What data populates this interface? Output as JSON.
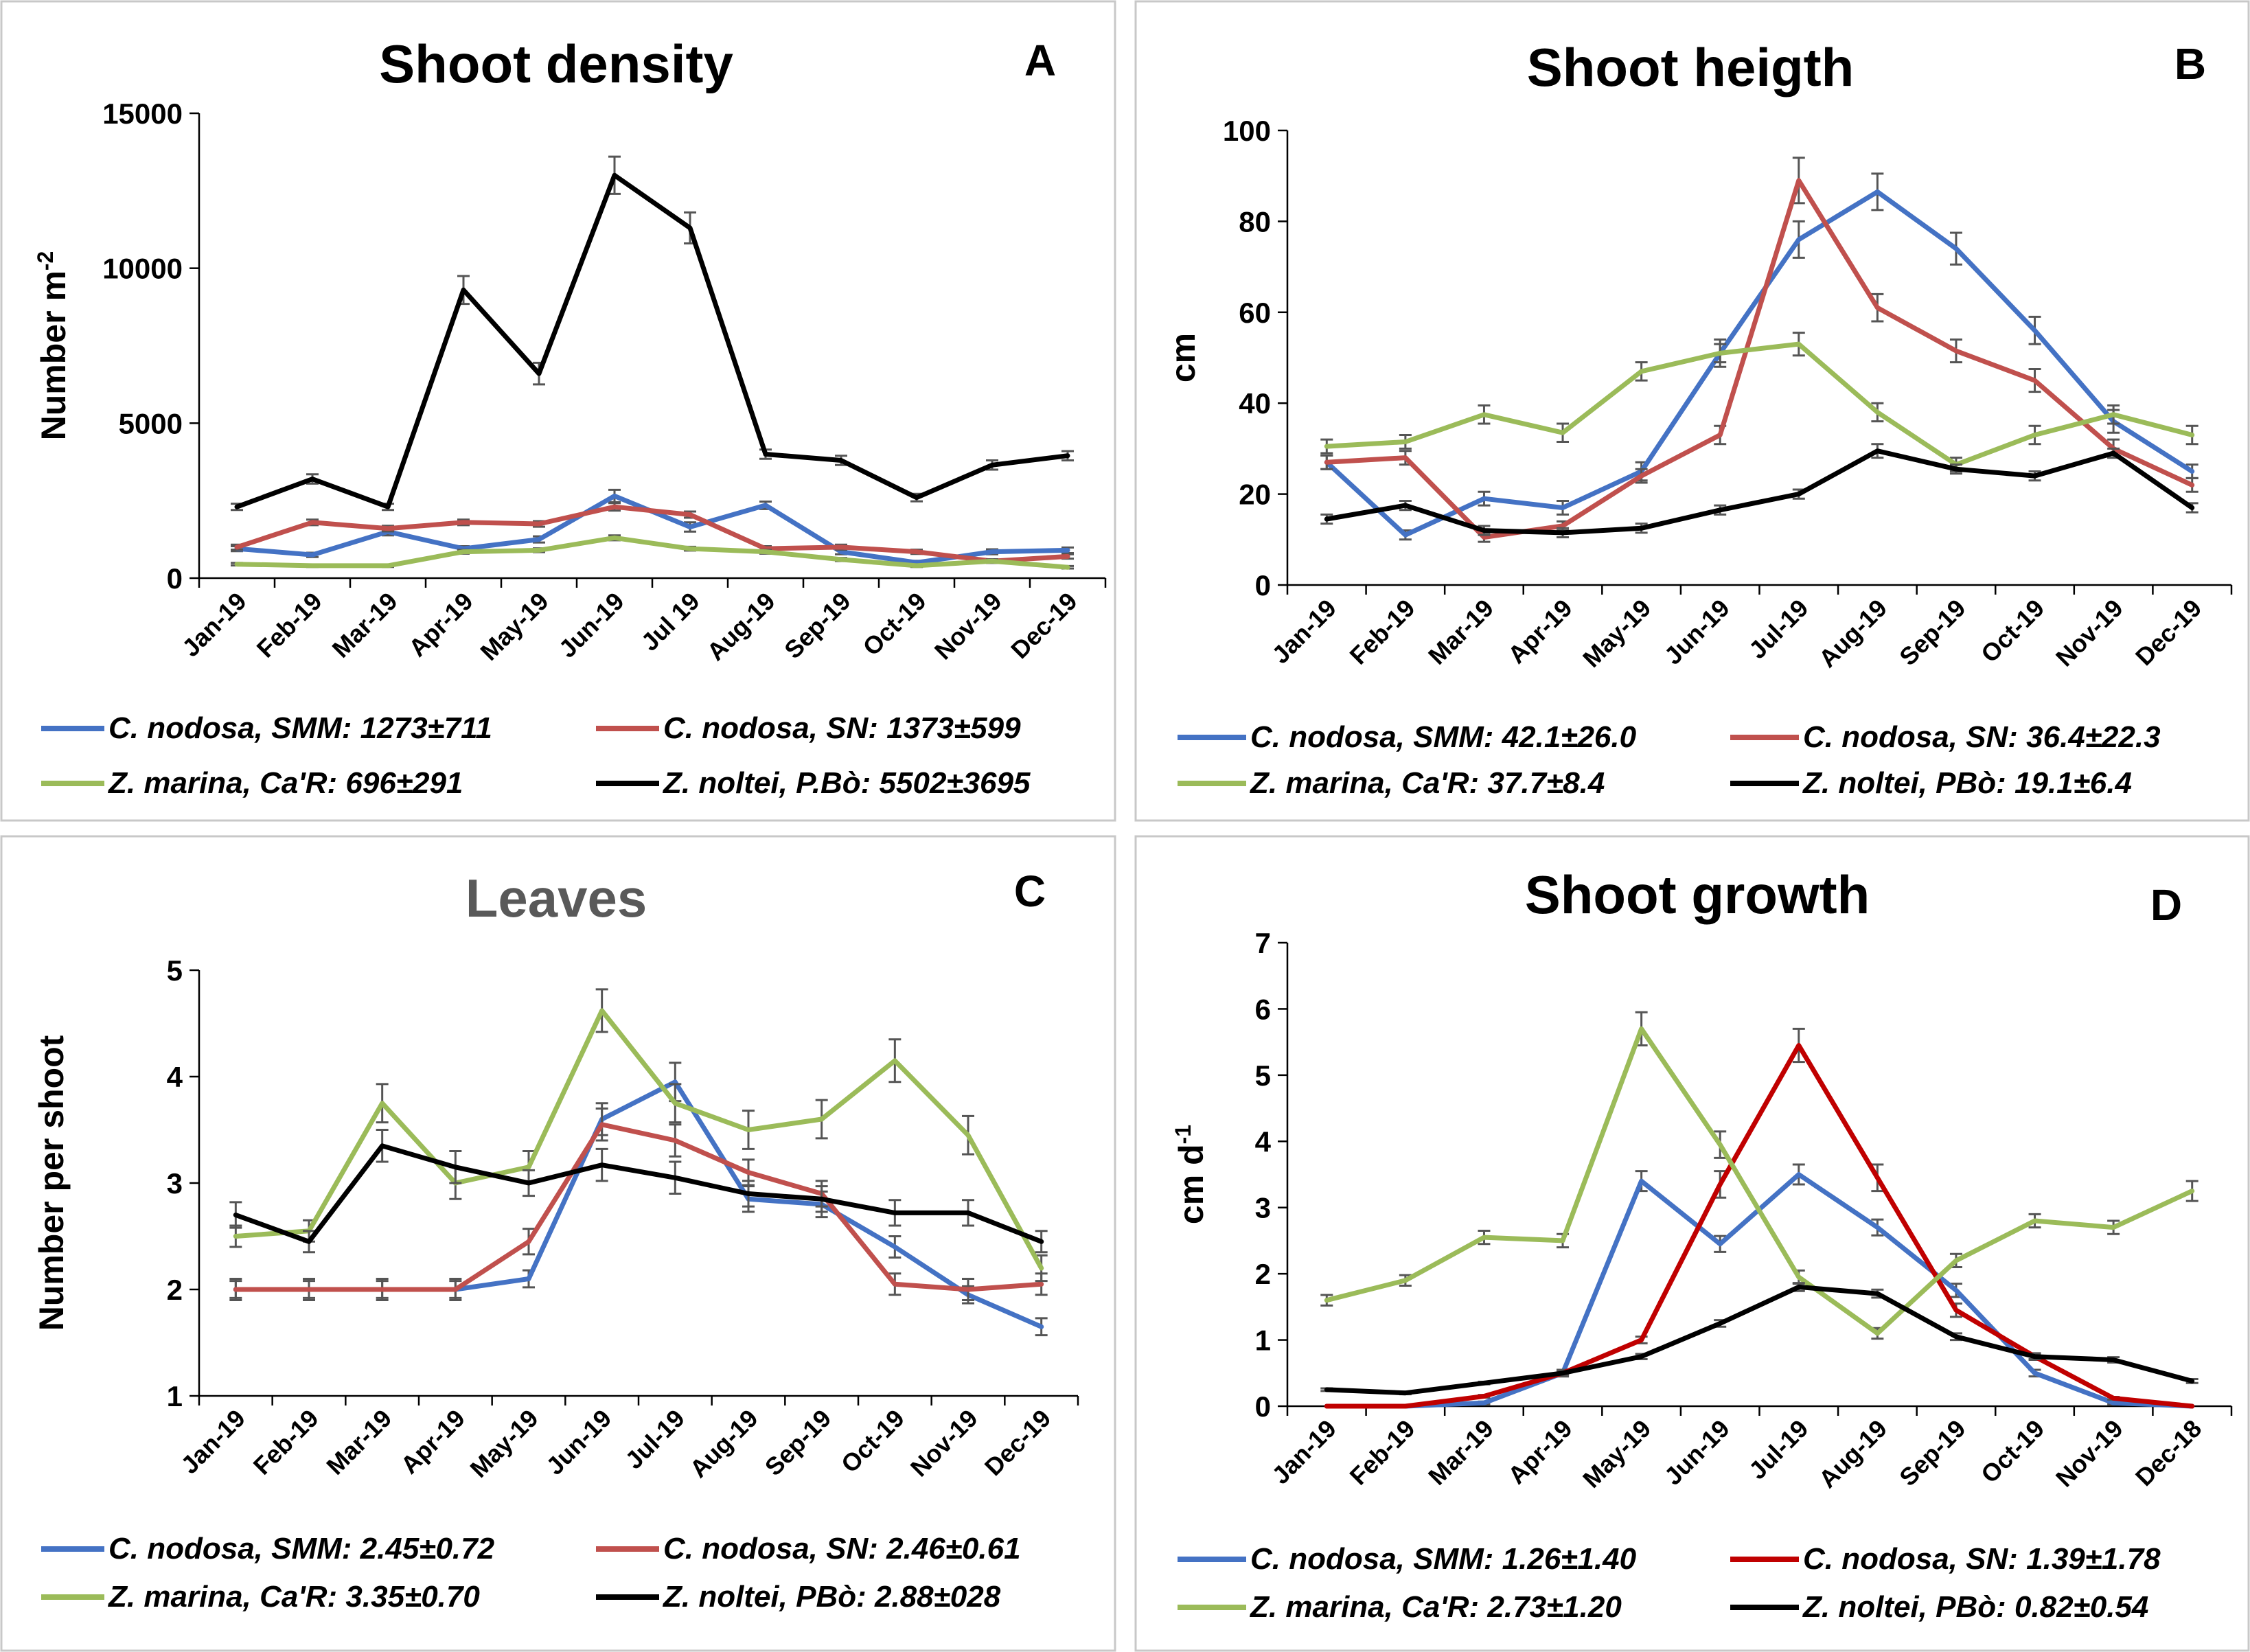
{
  "chart_data": [
    {
      "type": "line",
      "panel": "A",
      "title": "Shoot density",
      "ylabel": "Number m",
      "ylabel_sup": "-2",
      "ylim": [
        0,
        15000
      ],
      "yticks": [
        0,
        5000,
        10000,
        15000
      ],
      "categories": [
        "Jan-19",
        "Feb-19",
        "Mar-19",
        "Apr-19",
        "May-19",
        "Jun-19",
        "Jul 19",
        "Aug-19",
        "Sep-19",
        "Oct-19",
        "Nov-19",
        "Dec-19"
      ],
      "series": [
        {
          "name": "C. nodosa, SMM: 1273±711",
          "color": "#4472C4",
          "values": [
            950,
            750,
            1500,
            950,
            1250,
            2650,
            1650,
            2350,
            850,
            500,
            850,
            900
          ],
          "errors": [
            80,
            70,
            120,
            80,
            100,
            200,
            150,
            120,
            80,
            60,
            80,
            90
          ]
        },
        {
          "name": "C. nodosa, SN: 1373±599",
          "color": "#C0504D",
          "values": [
            1000,
            1800,
            1600,
            1800,
            1750,
            2300,
            2050,
            950,
            1000,
            850,
            550,
            700
          ],
          "errors": [
            80,
            90,
            90,
            90,
            90,
            120,
            100,
            80,
            80,
            70,
            60,
            70
          ]
        },
        {
          "name": "Z. marina, Ca'R: 696±291",
          "color": "#9BBB59",
          "values": [
            450,
            400,
            400,
            850,
            900,
            1300,
            950,
            850,
            600,
            400,
            550,
            350
          ],
          "errors": [
            40,
            40,
            40,
            60,
            60,
            80,
            60,
            60,
            50,
            40,
            50,
            40
          ]
        },
        {
          "name": "Z. noltei, P.Bò: 5502±3695",
          "color": "#000000",
          "values": [
            2300,
            3200,
            2300,
            9300,
            6600,
            13000,
            11300,
            4000,
            3800,
            2600,
            3650,
            3950
          ],
          "errors": [
            100,
            150,
            100,
            450,
            350,
            600,
            500,
            150,
            150,
            120,
            150,
            150
          ]
        }
      ]
    },
    {
      "type": "line",
      "panel": "B",
      "title": "Shoot heigth",
      "ylabel": "cm",
      "ylabel_sup": "",
      "ylim": [
        0,
        100
      ],
      "yticks": [
        0,
        20,
        40,
        60,
        80,
        100
      ],
      "categories": [
        "Jan-19",
        "Feb-19",
        "Mar-19",
        "Apr-19",
        "May-19",
        "Jun-19",
        "Jul-19",
        "Aug-19",
        "Sep-19",
        "Oct-19",
        "Nov-19",
        "Dec-19"
      ],
      "series": [
        {
          "name": "C. nodosa, SMM: 42.1±26.0",
          "color": "#4472C4",
          "values": [
            27,
            11,
            19,
            17,
            25,
            51,
            76,
            86.5,
            74,
            56,
            36,
            25
          ],
          "errors": [
            1.5,
            1,
            1.5,
            1.5,
            2,
            3,
            4,
            4,
            3.5,
            3,
            2.5,
            1.5
          ]
        },
        {
          "name": "C. nodosa, SN: 36.4±22.3",
          "color": "#C0504D",
          "values": [
            27,
            28,
            10.5,
            13,
            24,
            33,
            89,
            61,
            51.5,
            45,
            30,
            22
          ],
          "errors": [
            1.5,
            1.5,
            1,
            1,
            1.5,
            2,
            5,
            3,
            2.5,
            2.5,
            2,
            1.5
          ]
        },
        {
          "name": "Z. marina, Ca'R: 37.7±8.4",
          "color": "#9BBB59",
          "values": [
            30.5,
            31.5,
            37.5,
            33.5,
            47,
            51,
            53,
            38,
            26.5,
            33,
            37.5,
            33
          ],
          "errors": [
            1.5,
            1.5,
            2,
            2,
            2,
            2,
            2.5,
            2,
            1.5,
            2,
            2,
            2
          ]
        },
        {
          "name": "Z. noltei, PBò: 19.1±6.4",
          "color": "#000000",
          "values": [
            14.5,
            17.5,
            12,
            11.5,
            12.5,
            16.5,
            20,
            29.5,
            25.5,
            24,
            29,
            17
          ],
          "errors": [
            1,
            1,
            1,
            1,
            1,
            1,
            1,
            1.5,
            1,
            1,
            1,
            1
          ]
        }
      ]
    },
    {
      "type": "line",
      "panel": "C",
      "title": "Leaves",
      "ylabel": "Number per shoot",
      "ylabel_sup": "",
      "ylim": [
        1,
        5
      ],
      "yticks": [
        1,
        2,
        3,
        4,
        5
      ],
      "categories": [
        "Jan-19",
        "Feb-19",
        "Mar-19",
        "Apr-19",
        "May-19",
        "Jun-19",
        "Jul-19",
        "Aug-19",
        "Sep-19",
        "Oct-19",
        "Nov-19",
        "Dec-19"
      ],
      "series": [
        {
          "name": "C. nodosa, SMM: 2.45±0.72",
          "color": "#4472C4",
          "values": [
            2.0,
            2.0,
            2.0,
            2.0,
            2.1,
            3.6,
            3.95,
            2.85,
            2.8,
            2.4,
            1.95,
            1.65
          ],
          "errors": [
            0.08,
            0.08,
            0.08,
            0.08,
            0.08,
            0.15,
            0.18,
            0.12,
            0.12,
            0.1,
            0.08,
            0.08
          ]
        },
        {
          "name": "C. nodosa, SN: 2.46±0.61",
          "color": "#C0504D",
          "values": [
            2.0,
            2.0,
            2.0,
            2.0,
            2.45,
            3.55,
            3.4,
            3.1,
            2.9,
            2.05,
            2.0,
            2.05
          ],
          "errors": [
            0.1,
            0.1,
            0.1,
            0.1,
            0.12,
            0.15,
            0.15,
            0.12,
            0.12,
            0.1,
            0.1,
            0.1
          ]
        },
        {
          "name": "Z. marina, Ca'R: 3.35±0.70",
          "color": "#9BBB59",
          "values": [
            2.5,
            2.55,
            3.75,
            3.0,
            3.15,
            4.62,
            3.75,
            3.5,
            3.6,
            4.15,
            3.45,
            2.2
          ],
          "errors": [
            0.1,
            0.1,
            0.18,
            0.15,
            0.15,
            0.2,
            0.18,
            0.18,
            0.18,
            0.2,
            0.18,
            0.12
          ]
        },
        {
          "name": "Z. noltei, PBò: 2.88±028",
          "color": "#000000",
          "values": [
            2.7,
            2.45,
            3.35,
            3.15,
            3.0,
            3.17,
            3.05,
            2.9,
            2.85,
            2.72,
            2.72,
            2.45
          ],
          "errors": [
            0.12,
            0.1,
            0.15,
            0.15,
            0.12,
            0.15,
            0.15,
            0.12,
            0.12,
            0.12,
            0.12,
            0.1
          ]
        }
      ]
    },
    {
      "type": "line",
      "panel": "D",
      "title": "Shoot growth",
      "ylabel": "cm d",
      "ylabel_sup": "-1",
      "ylim": [
        0,
        7
      ],
      "yticks": [
        0,
        1,
        2,
        3,
        4,
        5,
        6,
        7
      ],
      "categories": [
        "Jan-19",
        "Feb-19",
        "Mar-19",
        "Apr-19",
        "May-19",
        "Jun-19",
        "Jul-19",
        "Aug-19",
        "Sep-19",
        "Oct-19",
        "Nov-19",
        "Dec-18"
      ],
      "series": [
        {
          "name": "C. nodosa, SMM: 1.26±1.40",
          "color": "#4472C4",
          "values": [
            0,
            0,
            0.05,
            0.5,
            3.4,
            2.45,
            3.5,
            2.7,
            1.75,
            0.5,
            0.05,
            0
          ],
          "errors": [
            0,
            0,
            0.02,
            0.05,
            0.15,
            0.12,
            0.15,
            0.12,
            0.1,
            0.05,
            0.02,
            0
          ]
        },
        {
          "name": "C. nodosa, SN: 1.39±1.78",
          "color": "#C00000",
          "values": [
            0,
            0,
            0.15,
            0.5,
            1.0,
            3.35,
            5.45,
            3.45,
            1.45,
            0.75,
            0.12,
            0
          ],
          "errors": [
            0,
            0,
            0.02,
            0.05,
            0.05,
            0.2,
            0.25,
            0.2,
            0.1,
            0.05,
            0.02,
            0
          ]
        },
        {
          "name": "Z. marina, Ca'R: 2.73±1.20",
          "color": "#9BBB59",
          "values": [
            1.6,
            1.9,
            2.55,
            2.5,
            5.7,
            3.95,
            1.95,
            1.1,
            2.2,
            2.8,
            2.7,
            3.25
          ],
          "errors": [
            0.08,
            0.08,
            0.1,
            0.1,
            0.25,
            0.2,
            0.1,
            0.08,
            0.1,
            0.1,
            0.1,
            0.15
          ]
        },
        {
          "name": "Z. noltei, PBò: 0.82±0.54",
          "color": "#000000",
          "values": [
            0.25,
            0.2,
            0.35,
            0.5,
            0.75,
            1.25,
            1.8,
            1.7,
            1.05,
            0.75,
            0.7,
            0.38
          ],
          "errors": [
            0.02,
            0.02,
            0.02,
            0.03,
            0.04,
            0.05,
            0.06,
            0.06,
            0.05,
            0.04,
            0.04,
            0.03
          ]
        }
      ]
    }
  ]
}
